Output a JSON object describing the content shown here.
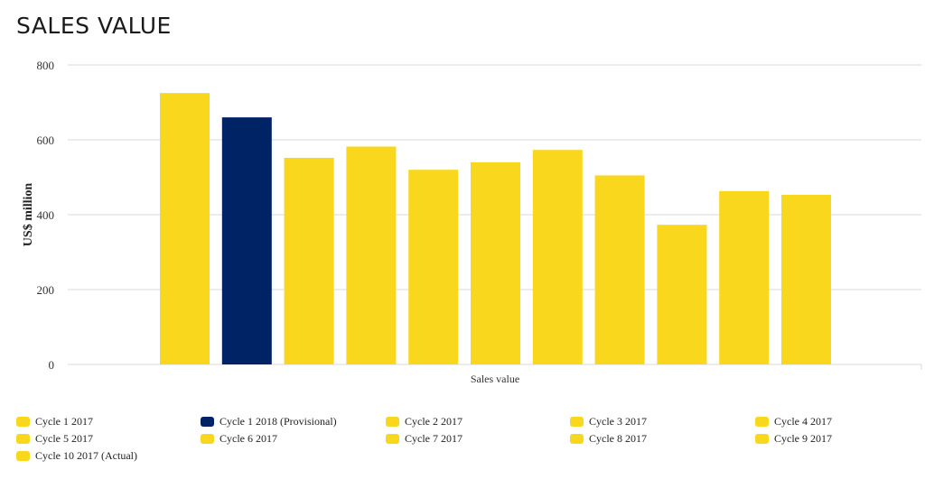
{
  "chart_data": {
    "type": "bar",
    "title": "SALES VALUE",
    "xlabel": "",
    "ylabel": "US$ million",
    "ylim": [
      0,
      800
    ],
    "yticks": [
      0,
      200,
      400,
      600,
      800
    ],
    "categories": [
      "Sales value"
    ],
    "grid": true,
    "legend_position": "bottom",
    "series": [
      {
        "name": "Cycle 1 2017",
        "values": [
          725
        ],
        "color": "#f9d71c"
      },
      {
        "name": "Cycle 1 2018 (Provisional)",
        "values": [
          660
        ],
        "color": "#002366"
      },
      {
        "name": "Cycle 2 2017",
        "values": [
          552
        ],
        "color": "#f9d71c"
      },
      {
        "name": "Cycle 3 2017",
        "values": [
          582
        ],
        "color": "#f9d71c"
      },
      {
        "name": "Cycle 4 2017",
        "values": [
          520
        ],
        "color": "#f9d71c"
      },
      {
        "name": "Cycle 5 2017",
        "values": [
          540
        ],
        "color": "#f9d71c"
      },
      {
        "name": "Cycle 6 2017",
        "values": [
          573
        ],
        "color": "#f9d71c"
      },
      {
        "name": "Cycle 7 2017",
        "values": [
          505
        ],
        "color": "#f9d71c"
      },
      {
        "name": "Cycle 8 2017",
        "values": [
          373
        ],
        "color": "#f9d71c"
      },
      {
        "name": "Cycle 9 2017",
        "values": [
          463
        ],
        "color": "#f9d71c"
      },
      {
        "name": "Cycle 10 2017 (Actual)",
        "values": [
          453
        ],
        "color": "#f9d71c"
      }
    ]
  },
  "colors": {
    "highlight": "#f9d71c",
    "accent": "#002366",
    "grid": "#d9d9d9"
  }
}
